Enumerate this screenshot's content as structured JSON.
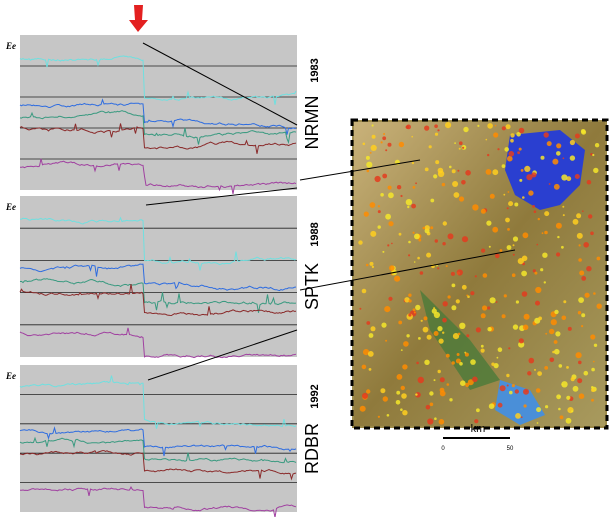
{
  "panels": [
    {
      "label": "Ee",
      "station": "NRMN",
      "year": "1983"
    },
    {
      "label": "Ee",
      "station": "SPTK",
      "year": "1988"
    },
    {
      "label": "Ee",
      "station": "RDBR",
      "year": "1992"
    }
  ],
  "map": {
    "scale_unit": "km",
    "scale_start": "0",
    "scale_end": "50"
  }
}
